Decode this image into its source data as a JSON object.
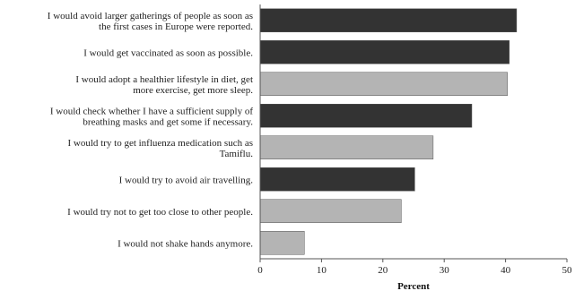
{
  "chart_data": {
    "type": "bar",
    "orientation": "horizontal",
    "xlabel": "Percent",
    "xlim": [
      0,
      50
    ],
    "xticks": [
      0,
      10,
      20,
      30,
      40,
      50
    ],
    "grid": false,
    "bars": [
      {
        "label": "I would avoid larger gatherings of people as soon as the first cases in Europe were reported.",
        "value": 41.8,
        "color": "#333333"
      },
      {
        "label": "I would get vaccinated as soon as possible.",
        "value": 40.6,
        "color": "#333333"
      },
      {
        "label": "I would adopt a healthier lifestyle in diet, get more exercise, get more sleep.",
        "value": 40.3,
        "color": "#b4b4b4"
      },
      {
        "label": "I would check whether I have a sufficient supply of breathing masks and get some if necessary.",
        "value": 34.5,
        "color": "#333333"
      },
      {
        "label": "I would try to get influenza medication such as Tamiflu.",
        "value": 28.2,
        "color": "#b4b4b4"
      },
      {
        "label": "I would try to avoid air travelling.",
        "value": 25.2,
        "color": "#333333"
      },
      {
        "label": "I would try not to get too close to other people.",
        "value": 23.0,
        "color": "#b4b4b4"
      },
      {
        "label": "I would not shake hands anymore.",
        "value": 7.2,
        "color": "#b4b4b4"
      }
    ]
  }
}
